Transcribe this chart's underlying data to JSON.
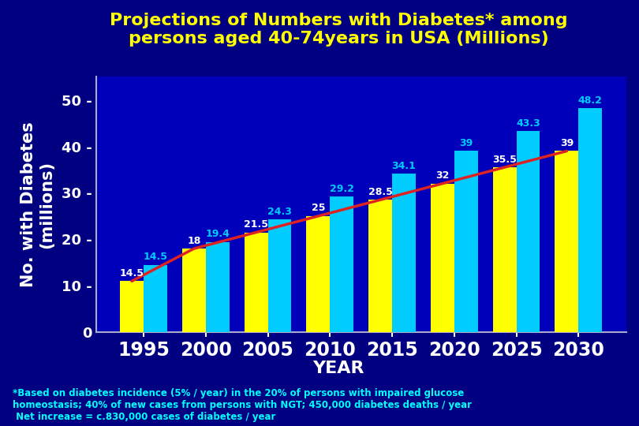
{
  "years": [
    1995,
    2000,
    2005,
    2010,
    2015,
    2020,
    2025,
    2030
  ],
  "cyan_values": [
    14.5,
    19.4,
    24.3,
    29.2,
    34.1,
    39.0,
    43.3,
    48.2
  ],
  "yellow_values": [
    11.0,
    18.0,
    21.5,
    25.0,
    28.5,
    32.0,
    35.5,
    39.0
  ],
  "cyan_labels": [
    "14.5",
    "19.4",
    "24.3",
    "29.2",
    "34.1",
    "39",
    "43.3",
    "48.2"
  ],
  "yellow_labels": [
    "",
    "18",
    "21.5",
    "25",
    "28.5",
    "32",
    "35.5",
    "39"
  ],
  "bar_width": 0.38,
  "cyan_color": "#00CCFF",
  "yellow_color": "#FFFF00",
  "red_line_color": "#DD2222",
  "title_line1": "Projections of Numbers with Diabetes* among",
  "title_line2": "persons aged 40-74years in USA (Millions)",
  "title_color": "#FFFF00",
  "xlabel": "YEAR",
  "ylabel": "No. with Diabetes\n(millions)",
  "white_color": "#FFFFFF",
  "cyan_text_color": "#00CCFF",
  "yellow_text_color": "#FFFF00",
  "tick_label_color": "#FFFFFF",
  "yticks": [
    0,
    10,
    20,
    30,
    40,
    50
  ],
  "ytick_labels": [
    "0",
    "10 -",
    "20 -",
    "30 -",
    "40 -",
    "50 -"
  ],
  "ylim": [
    0,
    55
  ],
  "fig_bg_color": "#000080",
  "plot_bg_color": "#0000BB",
  "footnote_line1": "*Based on diabetes incidence (5% / year) in the 20% of persons with impaired glucose",
  "footnote_line2": "homeostasis; 40% of new cases from persons with NGT; 450,000 diabetes deaths / year",
  "footnote_line3": " Net increase = c.830,000 cases of diabetes / year",
  "footnote_color": "#00FFFF",
  "title_fontsize": 16,
  "axis_label_fontsize": 15,
  "tick_fontsize": 13,
  "bar_label_fontsize": 9,
  "footnote_fontsize": 8.5,
  "year_label_fontsize": 17
}
